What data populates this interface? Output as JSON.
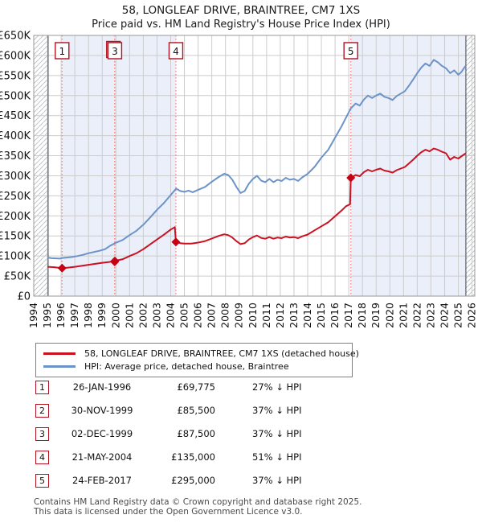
{
  "header": {
    "title": "58, LONGLEAF DRIVE, BRAINTREE, CM7 1XS",
    "subtitle": "Price paid vs. HM Land Registry's House Price Index (HPI)"
  },
  "legend": {
    "items": [
      {
        "label": "58, LONGLEAF DRIVE, BRAINTREE, CM7 1XS (detached house)",
        "color": "#cc1122"
      },
      {
        "label": "HPI: Average price, detached house, Braintree",
        "color": "#6c93c9"
      }
    ]
  },
  "footer": {
    "line1": "Contains HM Land Registry data © Crown copyright and database right 2025.",
    "line2": "This data is licensed under the Open Government Licence v3.0."
  },
  "chart_data": {
    "type": "line",
    "x_range": [
      1994,
      2026.2
    ],
    "y_range": [
      0,
      650000
    ],
    "y_units": "GBP",
    "grid": true,
    "x_tick_years": [
      1994,
      1995,
      1996,
      1997,
      1998,
      1999,
      2000,
      2001,
      2002,
      2003,
      2004,
      2005,
      2006,
      2007,
      2008,
      2009,
      2010,
      2011,
      2012,
      2013,
      2014,
      2015,
      2016,
      2017,
      2018,
      2019,
      2020,
      2021,
      2022,
      2023,
      2024,
      2025,
      2026
    ],
    "y_tick_values": [
      0,
      50000,
      100000,
      150000,
      200000,
      250000,
      300000,
      350000,
      400000,
      450000,
      500000,
      550000,
      600000,
      650000
    ],
    "y_tick_labels": [
      "£0",
      "£50K",
      "£100K",
      "£150K",
      "£200K",
      "£250K",
      "£300K",
      "£350K",
      "£400K",
      "£450K",
      "£500K",
      "£550K",
      "£600K",
      "£650K"
    ],
    "owned_periods": [
      [
        1996.07,
        2004.38
      ],
      [
        2017.15,
        2025.55
      ]
    ],
    "no_data_periods": [
      [
        1994,
        1995.05
      ],
      [
        2025.55,
        2026.2
      ]
    ],
    "colors": {
      "price_line": "#cc1122",
      "hpi_line": "#6c93c9",
      "marker": "#c70012",
      "event_line": "#f08080",
      "event_box_border": "#b01220",
      "owned_bg": "#eaeffa",
      "grid": "#cccccc",
      "frame": "#999999",
      "hatch": "#b8bcc4",
      "data_edge": "#5a5f66"
    },
    "sales": [
      {
        "n": 1,
        "date": "26-JAN-1996",
        "price": "£69,775",
        "pct": "27% ↓ HPI",
        "year": 1996.07,
        "value": 69775,
        "labeled": true
      },
      {
        "n": 2,
        "date": "30-NOV-1999",
        "price": "£85,500",
        "pct": "37% ↓ HPI",
        "year": 1999.91,
        "value": 85500,
        "labeled": false
      },
      {
        "n": 3,
        "date": "02-DEC-1999",
        "price": "£87,500",
        "pct": "37% ↓ HPI",
        "year": 1999.92,
        "value": 87500,
        "labeled": true
      },
      {
        "n": 4,
        "date": "21-MAY-2004",
        "price": "£135,000",
        "pct": "51% ↓ HPI",
        "year": 2004.38,
        "value": 135000,
        "labeled": true
      },
      {
        "n": 5,
        "date": "24-FEB-2017",
        "price": "£295,000",
        "pct": "37% ↓ HPI",
        "year": 2017.15,
        "value": 295000,
        "labeled": true
      }
    ],
    "series": [
      {
        "name": "58, LONGLEAF DRIVE, BRAINTREE, CM7 1XS (detached house)",
        "color": "#cc1122",
        "points": [
          [
            1995.05,
            73000
          ],
          [
            1995.5,
            72000
          ],
          [
            1996.07,
            69775
          ],
          [
            1996.5,
            71000
          ],
          [
            1997.0,
            73000
          ],
          [
            1997.5,
            75500
          ],
          [
            1998.0,
            78000
          ],
          [
            1998.5,
            80500
          ],
          [
            1999.0,
            83000
          ],
          [
            1999.5,
            85000
          ],
          [
            1999.92,
            87500
          ],
          [
            2000.5,
            92000
          ],
          [
            2001.0,
            100000
          ],
          [
            2001.5,
            107000
          ],
          [
            2002.0,
            117000
          ],
          [
            2002.5,
            129000
          ],
          [
            2003.0,
            141000
          ],
          [
            2003.5,
            153000
          ],
          [
            2004.0,
            166000
          ],
          [
            2004.3,
            172000
          ],
          [
            2004.38,
            135000
          ],
          [
            2004.7,
            132000
          ],
          [
            2005.0,
            131000
          ],
          [
            2005.5,
            131000
          ],
          [
            2006.0,
            133500
          ],
          [
            2006.5,
            137000
          ],
          [
            2007.0,
            143500
          ],
          [
            2007.5,
            150000
          ],
          [
            2007.9,
            154000
          ],
          [
            2008.2,
            152000
          ],
          [
            2008.5,
            146000
          ],
          [
            2008.8,
            137000
          ],
          [
            2009.1,
            129500
          ],
          [
            2009.4,
            132000
          ],
          [
            2009.7,
            141000
          ],
          [
            2010.0,
            147000
          ],
          [
            2010.3,
            151000
          ],
          [
            2010.6,
            145000
          ],
          [
            2010.9,
            143000
          ],
          [
            2011.2,
            147000
          ],
          [
            2011.5,
            143000
          ],
          [
            2011.8,
            146000
          ],
          [
            2012.1,
            144500
          ],
          [
            2012.4,
            148500
          ],
          [
            2012.7,
            146000
          ],
          [
            2013.0,
            147000
          ],
          [
            2013.3,
            144500
          ],
          [
            2013.6,
            149000
          ],
          [
            2014.0,
            153500
          ],
          [
            2014.5,
            164000
          ],
          [
            2015.0,
            174000
          ],
          [
            2015.5,
            184000
          ],
          [
            2016.0,
            199000
          ],
          [
            2016.5,
            214000
          ],
          [
            2016.8,
            224000
          ],
          [
            2017.1,
            229000
          ],
          [
            2017.15,
            295000
          ],
          [
            2017.5,
            302000
          ],
          [
            2017.8,
            299000
          ],
          [
            2018.1,
            309000
          ],
          [
            2018.4,
            315000
          ],
          [
            2018.7,
            311000
          ],
          [
            2019.0,
            315000
          ],
          [
            2019.3,
            318000
          ],
          [
            2019.6,
            313000
          ],
          [
            2019.9,
            311000
          ],
          [
            2020.2,
            308000
          ],
          [
            2020.5,
            314000
          ],
          [
            2020.8,
            318000
          ],
          [
            2021.1,
            322000
          ],
          [
            2021.4,
            331000
          ],
          [
            2021.7,
            340000
          ],
          [
            2022.0,
            350000
          ],
          [
            2022.3,
            359000
          ],
          [
            2022.6,
            365000
          ],
          [
            2022.9,
            361000
          ],
          [
            2023.2,
            368000
          ],
          [
            2023.5,
            365000
          ],
          [
            2023.8,
            360000
          ],
          [
            2024.1,
            356000
          ],
          [
            2024.4,
            340000
          ],
          [
            2024.7,
            347000
          ],
          [
            2025.0,
            343000
          ],
          [
            2025.2,
            348000
          ],
          [
            2025.5,
            355000
          ]
        ]
      },
      {
        "name": "HPI: Average price, detached house, Braintree",
        "color": "#6c93c9",
        "points": [
          [
            1995.05,
            96000
          ],
          [
            1995.3,
            94500
          ],
          [
            1995.6,
            94000
          ],
          [
            1995.9,
            93500
          ],
          [
            1996.1,
            95000
          ],
          [
            1996.4,
            96000
          ],
          [
            1996.8,
            97500
          ],
          [
            1997.2,
            100000
          ],
          [
            1997.6,
            103000
          ],
          [
            1998.0,
            107000
          ],
          [
            1998.4,
            110000
          ],
          [
            1998.8,
            113000
          ],
          [
            1999.2,
            117000
          ],
          [
            1999.6,
            126000
          ],
          [
            2000.0,
            133000
          ],
          [
            2000.5,
            140000
          ],
          [
            2001.0,
            152000
          ],
          [
            2001.5,
            163000
          ],
          [
            2002.0,
            178000
          ],
          [
            2002.5,
            196000
          ],
          [
            2003.0,
            215000
          ],
          [
            2003.5,
            232000
          ],
          [
            2004.0,
            252000
          ],
          [
            2004.4,
            268000
          ],
          [
            2004.7,
            262000
          ],
          [
            2005.0,
            260000
          ],
          [
            2005.3,
            263000
          ],
          [
            2005.6,
            259000
          ],
          [
            2006.0,
            265000
          ],
          [
            2006.5,
            272000
          ],
          [
            2007.0,
            285000
          ],
          [
            2007.5,
            297000
          ],
          [
            2007.9,
            305000
          ],
          [
            2008.2,
            302000
          ],
          [
            2008.5,
            290000
          ],
          [
            2008.8,
            272000
          ],
          [
            2009.1,
            257000
          ],
          [
            2009.4,
            262000
          ],
          [
            2009.7,
            280000
          ],
          [
            2010.0,
            292000
          ],
          [
            2010.3,
            300000
          ],
          [
            2010.6,
            288000
          ],
          [
            2010.9,
            284000
          ],
          [
            2011.2,
            292000
          ],
          [
            2011.5,
            284000
          ],
          [
            2011.8,
            290000
          ],
          [
            2012.1,
            287000
          ],
          [
            2012.4,
            295000
          ],
          [
            2012.7,
            290000
          ],
          [
            2013.0,
            292000
          ],
          [
            2013.3,
            287000
          ],
          [
            2013.6,
            296000
          ],
          [
            2014.0,
            305000
          ],
          [
            2014.5,
            322000
          ],
          [
            2015.0,
            345000
          ],
          [
            2015.5,
            365000
          ],
          [
            2016.0,
            395000
          ],
          [
            2016.5,
            425000
          ],
          [
            2016.8,
            445000
          ],
          [
            2017.15,
            468000
          ],
          [
            2017.5,
            480000
          ],
          [
            2017.8,
            475000
          ],
          [
            2018.1,
            490000
          ],
          [
            2018.4,
            500000
          ],
          [
            2018.7,
            494000
          ],
          [
            2019.0,
            500000
          ],
          [
            2019.3,
            505000
          ],
          [
            2019.6,
            497000
          ],
          [
            2019.9,
            494000
          ],
          [
            2020.2,
            489000
          ],
          [
            2020.5,
            499000
          ],
          [
            2020.8,
            505000
          ],
          [
            2021.1,
            511000
          ],
          [
            2021.4,
            525000
          ],
          [
            2021.7,
            540000
          ],
          [
            2022.0,
            556000
          ],
          [
            2022.3,
            570000
          ],
          [
            2022.6,
            580000
          ],
          [
            2022.9,
            574000
          ],
          [
            2023.2,
            589000
          ],
          [
            2023.5,
            583000
          ],
          [
            2023.8,
            574000
          ],
          [
            2024.1,
            568000
          ],
          [
            2024.4,
            556000
          ],
          [
            2024.7,
            563000
          ],
          [
            2025.0,
            552000
          ],
          [
            2025.2,
            558000
          ],
          [
            2025.5,
            573000
          ]
        ]
      }
    ]
  }
}
